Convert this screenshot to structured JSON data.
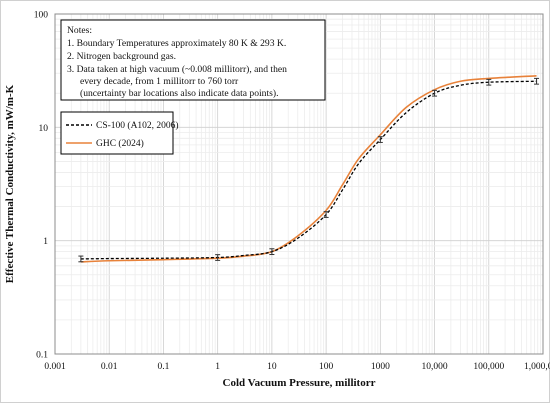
{
  "chart_data": {
    "type": "line",
    "xlabel": "Cold Vacuum Pressure, millitorr",
    "ylabel": "Effective Thermal Conductivity, mW/m-K",
    "x_scale": "log",
    "y_scale": "log",
    "xlim": [
      0.001,
      1000000
    ],
    "ylim": [
      0.1,
      100
    ],
    "x_ticks": [
      "0.001",
      "0.01",
      "0.1",
      "1",
      "10",
      "100",
      "1000",
      "10,000",
      "100,000",
      "1,000,000"
    ],
    "y_ticks": [
      "0.1",
      "1",
      "10",
      "100"
    ],
    "grid": true,
    "legend_position": "upper-left",
    "notes": [
      "Notes:",
      "1. Boundary Temperatures approximately 80 K & 293 K.",
      "2. Nitrogen background gas.",
      "3. Data taken at high vacuum (~0.008 millitorr), and then",
      "every decade, from 1 millitorr to 760 torr",
      "(uncertainty bar locations also indicate data points)."
    ],
    "series": [
      {
        "name": "CS-100 (A102, 2006)",
        "color": "#000000",
        "style": "dashed",
        "x": [
          0.003,
          0.01,
          0.1,
          1,
          3,
          10,
          30,
          100,
          200,
          400,
          1000,
          3000,
          10000,
          30000,
          100000,
          760000
        ],
        "y": [
          0.69,
          0.695,
          0.7,
          0.71,
          0.74,
          0.8,
          1.05,
          1.7,
          2.8,
          4.8,
          7.8,
          13.5,
          20.0,
          23.5,
          25.0,
          25.5
        ],
        "error_bars_at": [
          0.003,
          1,
          10,
          100,
          1000,
          10000,
          100000,
          760000
        ]
      },
      {
        "name": "GHC (2024)",
        "color": "#e8823a",
        "style": "solid",
        "x": [
          0.003,
          0.01,
          0.1,
          1,
          3,
          10,
          30,
          100,
          200,
          400,
          1000,
          3000,
          10000,
          30000,
          100000,
          760000
        ],
        "y": [
          0.65,
          0.665,
          0.68,
          0.7,
          0.73,
          0.8,
          1.1,
          1.85,
          3.1,
          5.3,
          8.6,
          15.0,
          21.5,
          25.5,
          27.0,
          28.5
        ]
      }
    ]
  }
}
